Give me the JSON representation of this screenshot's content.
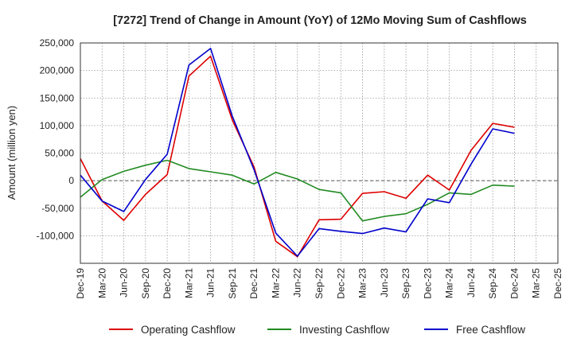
{
  "chart_data": {
    "type": "line",
    "title": "[7272]  Trend of Change in Amount (YoY) of 12Mo Moving Sum of Cashflows",
    "xlabel": "",
    "ylabel": "Amount (million yen)",
    "ylim": [
      -150000,
      250000
    ],
    "y_ticks": [
      250000,
      200000,
      150000,
      100000,
      50000,
      0,
      -50000,
      -100000
    ],
    "y_tick_labels": [
      "250,000",
      "200,000",
      "150,000",
      "100,000",
      "50,000",
      "0",
      "-50,000",
      "-100,000"
    ],
    "x_tick_labels": [
      "Dec-19",
      "Mar-20",
      "Jun-20",
      "Sep-20",
      "Dec-20",
      "Mar-21",
      "Jun-21",
      "Sep-21",
      "Dec-21",
      "Mar-22",
      "Jun-22",
      "Sep-22",
      "Dec-22",
      "Mar-23",
      "Jun-23",
      "Sep-23",
      "Dec-23",
      "Mar-24",
      "Jun-24",
      "Sep-24",
      "Dec-24",
      "Mar-25",
      "Dec-25"
    ],
    "categories": [
      "Dec-19",
      "Mar-20",
      "Jun-20",
      "Sep-20",
      "Dec-20",
      "Mar-21",
      "Jun-21",
      "Sep-21",
      "Dec-21",
      "Mar-22",
      "Jun-22",
      "Sep-22",
      "Dec-22",
      "Mar-23",
      "Jun-23",
      "Sep-23",
      "Dec-23",
      "Mar-24",
      "Jun-24",
      "Sep-24",
      "Dec-24"
    ],
    "grid": true,
    "legend_position": "bottom",
    "series": [
      {
        "name": "Operating Cashflow",
        "color": "#dd0000",
        "values": [
          40000,
          -37000,
          -72000,
          -25000,
          11000,
          190000,
          226000,
          110000,
          25000,
          -110000,
          -138000,
          -71000,
          -70000,
          -23000,
          -20000,
          -32000,
          10000,
          -17000,
          55000,
          104000,
          97000
        ]
      },
      {
        "name": "Investing Cashflow",
        "color": "#228b22",
        "values": [
          -30000,
          2000,
          17000,
          28000,
          37000,
          22000,
          16000,
          10000,
          -6000,
          15000,
          3000,
          -16000,
          -22000,
          -73000,
          -65000,
          -60000,
          -43000,
          -22000,
          -25000,
          -8000,
          -10000
        ]
      },
      {
        "name": "Free Cashflow",
        "color": "#0000cc",
        "values": [
          10000,
          -37000,
          -56000,
          2000,
          48000,
          210000,
          240000,
          117000,
          20000,
          -95000,
          -137000,
          -87000,
          -92000,
          -96000,
          -86000,
          -93000,
          -33000,
          -40000,
          30000,
          94000,
          86000
        ]
      }
    ]
  }
}
